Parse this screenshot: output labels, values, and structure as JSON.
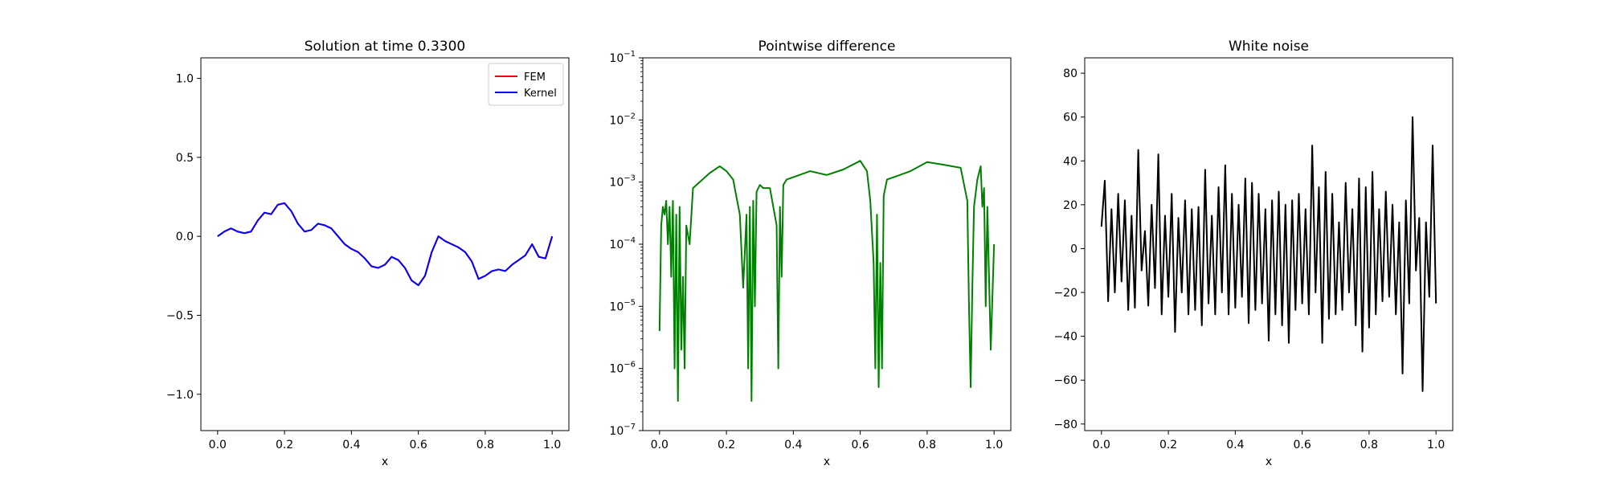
{
  "chart_data": [
    {
      "type": "line",
      "title": "Solution at time 0.3300",
      "xlabel": "x",
      "ylabel": "",
      "xlim": [
        -0.05,
        1.05
      ],
      "ylim": [
        -1.23,
        1.13
      ],
      "x_ticks": [
        0.0,
        0.2,
        0.4,
        0.6,
        0.8,
        1.0
      ],
      "x_tick_labels": [
        "0.0",
        "0.2",
        "0.4",
        "0.6",
        "0.8",
        "1.0"
      ],
      "y_ticks": [
        -1.0,
        -0.5,
        0.0,
        0.5,
        1.0
      ],
      "y_tick_labels": [
        "−1.0",
        "−0.5",
        "0.0",
        "0.5",
        "1.0"
      ],
      "legend": {
        "location": "upper right",
        "entries": [
          "FEM",
          "Kernel"
        ]
      },
      "grid": false,
      "series": [
        {
          "name": "FEM",
          "color": "#ff0000",
          "x": [
            0.0,
            0.02,
            0.04,
            0.06,
            0.08,
            0.1,
            0.12,
            0.14,
            0.16,
            0.18,
            0.2,
            0.22,
            0.24,
            0.26,
            0.28,
            0.3,
            0.32,
            0.34,
            0.36,
            0.38,
            0.4,
            0.42,
            0.44,
            0.46,
            0.48,
            0.5,
            0.52,
            0.54,
            0.56,
            0.58,
            0.6,
            0.62,
            0.64,
            0.66,
            0.68,
            0.7,
            0.72,
            0.74,
            0.76,
            0.78,
            0.8,
            0.82,
            0.84,
            0.86,
            0.88,
            0.9,
            0.92,
            0.94,
            0.96,
            0.98,
            1.0
          ],
          "y": [
            0.0,
            0.03,
            0.05,
            0.03,
            0.02,
            0.03,
            0.1,
            0.15,
            0.14,
            0.2,
            0.21,
            0.16,
            0.08,
            0.03,
            0.04,
            0.08,
            0.07,
            0.05,
            0.0,
            -0.05,
            -0.08,
            -0.1,
            -0.14,
            -0.19,
            -0.2,
            -0.18,
            -0.13,
            -0.15,
            -0.2,
            -0.28,
            -0.31,
            -0.25,
            -0.1,
            0.0,
            -0.03,
            -0.05,
            -0.07,
            -0.1,
            -0.16,
            -0.27,
            -0.25,
            -0.22,
            -0.21,
            -0.22,
            -0.18,
            -0.15,
            -0.12,
            -0.05,
            -0.13,
            -0.14,
            0.0
          ]
        },
        {
          "name": "Kernel",
          "color": "#0000ff",
          "x": [
            0.0,
            0.02,
            0.04,
            0.06,
            0.08,
            0.1,
            0.12,
            0.14,
            0.16,
            0.18,
            0.2,
            0.22,
            0.24,
            0.26,
            0.28,
            0.3,
            0.32,
            0.34,
            0.36,
            0.38,
            0.4,
            0.42,
            0.44,
            0.46,
            0.48,
            0.5,
            0.52,
            0.54,
            0.56,
            0.58,
            0.6,
            0.62,
            0.64,
            0.66,
            0.68,
            0.7,
            0.72,
            0.74,
            0.76,
            0.78,
            0.8,
            0.82,
            0.84,
            0.86,
            0.88,
            0.9,
            0.92,
            0.94,
            0.96,
            0.98,
            1.0
          ],
          "y": [
            0.0,
            0.03,
            0.05,
            0.03,
            0.02,
            0.03,
            0.1,
            0.15,
            0.14,
            0.2,
            0.21,
            0.16,
            0.08,
            0.03,
            0.04,
            0.08,
            0.07,
            0.05,
            0.0,
            -0.05,
            -0.08,
            -0.1,
            -0.14,
            -0.19,
            -0.2,
            -0.18,
            -0.13,
            -0.15,
            -0.2,
            -0.28,
            -0.31,
            -0.25,
            -0.1,
            0.0,
            -0.03,
            -0.05,
            -0.07,
            -0.1,
            -0.16,
            -0.27,
            -0.25,
            -0.22,
            -0.21,
            -0.22,
            -0.18,
            -0.15,
            -0.12,
            -0.05,
            -0.13,
            -0.14,
            0.0
          ]
        }
      ]
    },
    {
      "type": "line",
      "title": "Pointwise difference",
      "xlabel": "x",
      "ylabel": "",
      "yscale": "log",
      "xlim": [
        -0.05,
        1.05
      ],
      "ylim": [
        1e-07,
        0.1
      ],
      "x_ticks": [
        0.0,
        0.2,
        0.4,
        0.6,
        0.8,
        1.0
      ],
      "x_tick_labels": [
        "0.0",
        "0.2",
        "0.4",
        "0.6",
        "0.8",
        "1.0"
      ],
      "y_ticks": [
        1e-07,
        1e-06,
        1e-05,
        0.0001,
        0.001,
        0.01,
        0.1
      ],
      "y_tick_labels": [
        {
          "base": "10",
          "exp": "−7"
        },
        {
          "base": "10",
          "exp": "−6"
        },
        {
          "base": "10",
          "exp": "−5"
        },
        {
          "base": "10",
          "exp": "−4"
        },
        {
          "base": "10",
          "exp": "−3"
        },
        {
          "base": "10",
          "exp": "−2"
        },
        {
          "base": "10",
          "exp": "−1"
        }
      ],
      "grid": false,
      "series": [
        {
          "color": "#008000",
          "x": [
            0.0,
            0.005,
            0.01,
            0.015,
            0.02,
            0.025,
            0.03,
            0.035,
            0.04,
            0.045,
            0.05,
            0.055,
            0.06,
            0.065,
            0.07,
            0.075,
            0.08,
            0.09,
            0.1,
            0.12,
            0.15,
            0.18,
            0.2,
            0.22,
            0.24,
            0.25,
            0.26,
            0.265,
            0.27,
            0.275,
            0.28,
            0.285,
            0.29,
            0.3,
            0.31,
            0.33,
            0.35,
            0.355,
            0.36,
            0.365,
            0.37,
            0.38,
            0.4,
            0.45,
            0.5,
            0.55,
            0.6,
            0.62,
            0.63,
            0.64,
            0.645,
            0.65,
            0.655,
            0.66,
            0.665,
            0.67,
            0.68,
            0.7,
            0.75,
            0.8,
            0.85,
            0.9,
            0.92,
            0.925,
            0.93,
            0.935,
            0.94,
            0.95,
            0.96,
            0.965,
            0.97,
            0.975,
            0.98,
            0.99,
            1.0
          ],
          "y": [
            4e-06,
            0.0002,
            0.0004,
            0.0003,
            0.0005,
            0.0001,
            0.0004,
            3e-05,
            0.0005,
            1e-06,
            0.0003,
            3e-07,
            0.0004,
            2e-06,
            3e-05,
            1e-06,
            0.0002,
            0.0001,
            0.0008,
            0.001,
            0.0014,
            0.0018,
            0.0015,
            0.0011,
            0.0003,
            2e-05,
            0.0003,
            1e-06,
            0.0004,
            3e-07,
            0.0005,
            1e-05,
            0.0007,
            0.0009,
            0.0008,
            0.0008,
            0.0002,
            1e-06,
            0.0004,
            3e-05,
            0.0009,
            0.0011,
            0.0012,
            0.0015,
            0.0013,
            0.0016,
            0.0022,
            0.0015,
            0.0005,
            5e-05,
            1e-06,
            0.0003,
            5e-07,
            5e-05,
            1e-06,
            0.0006,
            0.0011,
            0.0012,
            0.0015,
            0.0021,
            0.0019,
            0.0017,
            0.0005,
            1e-05,
            5e-07,
            2e-05,
            0.0004,
            0.0011,
            0.0018,
            0.0004,
            0.0008,
            1e-05,
            0.0004,
            2e-06,
            0.0001
          ]
        }
      ]
    },
    {
      "type": "line",
      "title": "White noise",
      "xlabel": "x",
      "ylabel": "",
      "xlim": [
        -0.05,
        1.05
      ],
      "ylim": [
        -83,
        87
      ],
      "x_ticks": [
        0.0,
        0.2,
        0.4,
        0.6,
        0.8,
        1.0
      ],
      "x_tick_labels": [
        "0.0",
        "0.2",
        "0.4",
        "0.6",
        "0.8",
        "1.0"
      ],
      "y_ticks": [
        -80,
        -60,
        -40,
        -20,
        0,
        20,
        40,
        60,
        80
      ],
      "y_tick_labels": [
        "−80",
        "−60",
        "−40",
        "−20",
        "0",
        "20",
        "40",
        "60",
        "80"
      ],
      "grid": false,
      "series": [
        {
          "color": "#000000",
          "x": [
            0.0,
            0.01,
            0.02,
            0.03,
            0.04,
            0.05,
            0.06,
            0.07,
            0.08,
            0.09,
            0.1,
            0.11,
            0.12,
            0.13,
            0.14,
            0.15,
            0.16,
            0.17,
            0.18,
            0.19,
            0.2,
            0.21,
            0.22,
            0.23,
            0.24,
            0.25,
            0.26,
            0.27,
            0.28,
            0.29,
            0.3,
            0.31,
            0.32,
            0.33,
            0.34,
            0.35,
            0.36,
            0.37,
            0.38,
            0.39,
            0.4,
            0.41,
            0.42,
            0.43,
            0.44,
            0.45,
            0.46,
            0.47,
            0.48,
            0.49,
            0.5,
            0.51,
            0.52,
            0.53,
            0.54,
            0.55,
            0.56,
            0.57,
            0.58,
            0.59,
            0.6,
            0.61,
            0.62,
            0.63,
            0.64,
            0.65,
            0.66,
            0.67,
            0.68,
            0.69,
            0.7,
            0.71,
            0.72,
            0.73,
            0.74,
            0.75,
            0.76,
            0.77,
            0.78,
            0.79,
            0.8,
            0.81,
            0.82,
            0.83,
            0.84,
            0.85,
            0.86,
            0.87,
            0.88,
            0.89,
            0.9,
            0.91,
            0.92,
            0.93,
            0.94,
            0.95,
            0.96,
            0.97,
            0.98,
            0.99,
            1.0
          ],
          "y": [
            10,
            31,
            -24,
            18,
            -20,
            25,
            -15,
            22,
            -28,
            15,
            -27,
            45,
            -10,
            8,
            -26,
            20,
            -18,
            43,
            -30,
            15,
            -22,
            25,
            -38,
            14,
            -20,
            22,
            -30,
            18,
            -28,
            19,
            -35,
            36,
            -25,
            15,
            -30,
            28,
            -20,
            38,
            -30,
            25,
            -27,
            20,
            -22,
            32,
            -34,
            30,
            -28,
            25,
            -25,
            18,
            -42,
            22,
            -30,
            26,
            -35,
            20,
            -43,
            22,
            -28,
            25,
            -25,
            18,
            -30,
            47,
            -20,
            28,
            -43,
            35,
            -32,
            25,
            -30,
            12,
            -28,
            30,
            -20,
            18,
            -35,
            32,
            -47,
            28,
            -36,
            35,
            -30,
            18,
            -24,
            26,
            -22,
            20,
            -30,
            12,
            -57,
            22,
            -25,
            60,
            -10,
            14,
            -65,
            12,
            -22,
            47,
            -25
          ]
        }
      ]
    }
  ]
}
